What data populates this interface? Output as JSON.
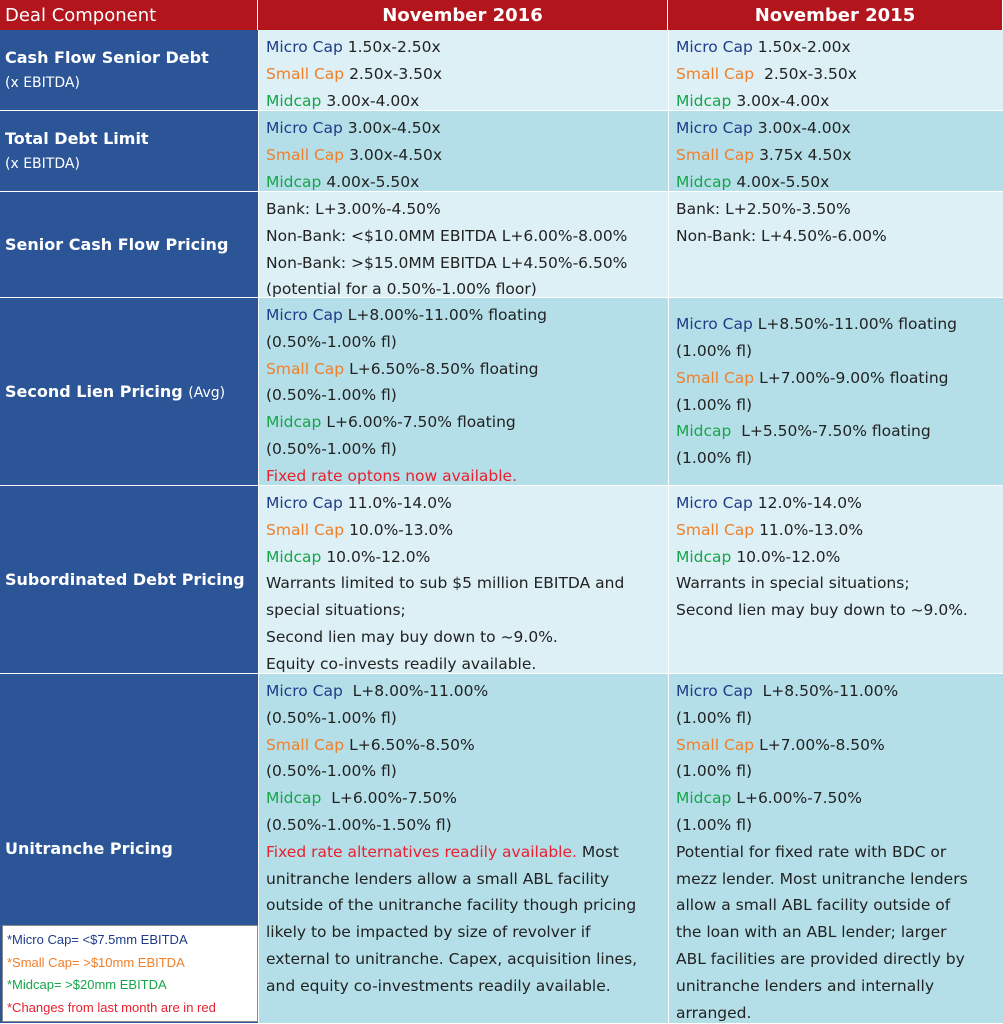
{
  "table": {
    "header": [
      "Deal Component",
      "November 2016",
      "November 2015"
    ],
    "rows": [
      {
        "label": "Cash Flow Senior Debt",
        "sublabel": "(x EBITDA)",
        "cells": [
          [
            [
              {
                "text": "Micro Cap",
                "color": "#1f3c88"
              },
              {
                "text": " 1.50x-2.50x"
              }
            ],
            [
              {
                "text": "Small Cap",
                "color": "#f07f2a"
              },
              {
                "text": " 2.50x-3.50x"
              }
            ],
            [
              {
                "text": "Midcap",
                "color": "#17a54a"
              },
              {
                "text": " 3.00x-4.00x"
              }
            ]
          ],
          [
            [
              {
                "text": "Micro Cap",
                "color": "#1f3c88"
              },
              {
                "text": " 1.50x-2.00x"
              }
            ],
            [
              {
                "text": "Small Cap",
                "color": "#f07f2a"
              },
              {
                "text": "  2.50x-3.50x"
              }
            ],
            [
              {
                "text": "Midcap",
                "color": "#17a54a"
              },
              {
                "text": " 3.00x-4.00x"
              }
            ]
          ]
        ]
      },
      {
        "label": "Total Debt Limit",
        "sublabel": "(x EBITDA)",
        "cells": [
          [
            [
              {
                "text": "Micro Cap",
                "color": "#1f3c88"
              },
              {
                "text": " 3.00x-4.50x"
              }
            ],
            [
              {
                "text": "Small Cap",
                "color": "#f07f2a"
              },
              {
                "text": " 3.00x-4.50x"
              }
            ],
            [
              {
                "text": "Midcap",
                "color": "#17a54a"
              },
              {
                "text": " 4.00x-5.50x"
              }
            ]
          ],
          [
            [
              {
                "text": "Micro Cap",
                "color": "#1f3c88"
              },
              {
                "text": " 3.00x-4.00x"
              }
            ],
            [
              {
                "text": "Small Cap",
                "color": "#f07f2a"
              },
              {
                "text": " 3.75x 4.50x"
              }
            ],
            [
              {
                "text": "Midcap",
                "color": "#17a54a"
              },
              {
                "text": " 4.00x-5.50x"
              }
            ]
          ]
        ]
      },
      {
        "label": "Senior Cash Flow Pricing",
        "cells": [
          [
            [
              {
                "text": "Bank: L+3.00%-4.50%"
              }
            ],
            [
              {
                "text": "Non-Bank: <$10.0MM EBITDA L+6.00%-8.00%"
              }
            ],
            [
              {
                "text": "Non-Bank: >$15.0MM EBITDA L+4.50%-6.50%"
              }
            ],
            [
              {
                "text": "(potential for a 0.50%-1.00% floor)"
              }
            ]
          ],
          [
            [
              {
                "text": "Bank: L+2.50%-3.50%"
              }
            ],
            [
              {
                "text": "Non-Bank: L+4.50%-6.00%"
              }
            ]
          ]
        ]
      },
      {
        "label": "Second Lien Pricing",
        "label_note": "(Avg)",
        "cells": [
          [
            [
              {
                "text": "Micro Cap",
                "color": "#1f3c88"
              },
              {
                "text": " L+8.00%-11.00% floating"
              }
            ],
            [
              {
                "text": "(0.50%-1.00% fl)"
              }
            ],
            [
              {
                "text": "Small Cap",
                "color": "#f07f2a"
              },
              {
                "text": " L+6.50%-8.50% floating"
              }
            ],
            [
              {
                "text": "(0.50%-1.00% fl)"
              }
            ],
            [
              {
                "text": "Midcap",
                "color": "#17a54a"
              },
              {
                "text": " L+6.00%-7.50% floating"
              }
            ],
            [
              {
                "text": "(0.50%-1.00% fl)"
              }
            ],
            [
              {
                "text": "Fixed rate optons now available.",
                "color": "#e8202f"
              }
            ]
          ],
          [
            [
              {
                "text": "Micro Cap",
                "color": "#1f3c88"
              },
              {
                "text": " L+8.50%-11.00% floating"
              }
            ],
            [
              {
                "text": "(1.00% fl)"
              }
            ],
            [
              {
                "text": "Small Cap",
                "color": "#f07f2a"
              },
              {
                "text": " L+7.00%-9.00% floating"
              }
            ],
            [
              {
                "text": "(1.00% fl)"
              }
            ],
            [
              {
                "text": "Midcap",
                "color": "#17a54a"
              },
              {
                "text": "  L+5.50%-7.50% floating"
              }
            ],
            [
              {
                "text": "(1.00% fl)"
              }
            ]
          ]
        ]
      },
      {
        "label": "Subordinated Debt Pricing",
        "cells": [
          [
            [
              {
                "text": "Micro Cap",
                "color": "#1f3c88"
              },
              {
                "text": " 11.0%-14.0%"
              }
            ],
            [
              {
                "text": "Small Cap",
                "color": "#f07f2a"
              },
              {
                "text": " 10.0%-13.0%"
              }
            ],
            [
              {
                "text": "Midcap",
                "color": "#17a54a"
              },
              {
                "text": " 10.0%-12.0%"
              }
            ],
            [
              {
                "text": "Warrants limited to sub $5 million EBITDA and"
              }
            ],
            [
              {
                "text": "special situations;"
              }
            ],
            [
              {
                "text": "Second lien may buy down to ~9.0%."
              }
            ],
            [
              {
                "text": "Equity co-invests readily available."
              }
            ]
          ],
          [
            [
              {
                "text": "Micro Cap",
                "color": "#1f3c88"
              },
              {
                "text": " 12.0%-14.0%"
              }
            ],
            [
              {
                "text": "Small Cap",
                "color": "#f07f2a"
              },
              {
                "text": " 11.0%-13.0%"
              }
            ],
            [
              {
                "text": "Midcap",
                "color": "#17a54a"
              },
              {
                "text": " 10.0%-12.0%"
              }
            ],
            [
              {
                "text": "Warrants in special situations;"
              }
            ],
            [
              {
                "text": "Second lien may buy down to ~9.0%."
              }
            ]
          ]
        ]
      },
      {
        "label": "Unitranche Pricing",
        "cells": [
          [
            [
              {
                "text": "Micro Cap",
                "color": "#1f3c88"
              },
              {
                "text": "  L+8.00%-11.00%"
              }
            ],
            [
              {
                "text": "(0.50%-1.00% fl)"
              }
            ],
            [
              {
                "text": "Small Cap",
                "color": "#f07f2a"
              },
              {
                "text": " L+6.50%-8.50%"
              }
            ],
            [
              {
                "text": "(0.50%-1.00% fl)"
              }
            ],
            [
              {
                "text": "Midcap",
                "color": "#17a54a"
              },
              {
                "text": "  L+6.00%-7.50%"
              }
            ],
            [
              {
                "text": "(0.50%-1.00%-1.50% fl)"
              }
            ],
            [
              {
                "text": "Fixed rate alternatives readily available.",
                "color": "#e8202f"
              },
              {
                "text": " Most"
              }
            ],
            [
              {
                "text": "unitranche lenders allow a small ABL facility"
              }
            ],
            [
              {
                "text": "outside of the unitranche facility though pricing"
              }
            ],
            [
              {
                "text": "likely to be impacted by size of revolver if"
              }
            ],
            [
              {
                "text": "external to unitranche. Capex, acquisition lines,"
              }
            ],
            [
              {
                "text": "and equity co-investments readily available."
              }
            ]
          ],
          [
            [
              {
                "text": "Micro Cap",
                "color": "#1f3c88"
              },
              {
                "text": "  L+8.50%-11.00%"
              }
            ],
            [
              {
                "text": "(1.00% fl)"
              }
            ],
            [
              {
                "text": "Small Cap",
                "color": "#f07f2a"
              },
              {
                "text": " L+7.00%-8.50%"
              }
            ],
            [
              {
                "text": "(1.00% fl)"
              }
            ],
            [
              {
                "text": "Midcap",
                "color": "#17a54a"
              },
              {
                "text": " L+6.00%-7.50%"
              }
            ],
            [
              {
                "text": "(1.00% fl)"
              }
            ],
            [
              {
                "text": "Potential for fixed rate with BDC or"
              }
            ],
            [
              {
                "text": "mezz lender. Most unitranche lenders"
              }
            ],
            [
              {
                "text": "allow a small ABL facility outside of"
              }
            ],
            [
              {
                "text": "the loan with an ABL lender; larger"
              }
            ],
            [
              {
                "text": "ABL facilities are provided directly by"
              }
            ],
            [
              {
                "text": "unitranche lenders and internally"
              }
            ],
            [
              {
                "text": "arranged."
              }
            ]
          ]
        ]
      }
    ]
  },
  "legend": [
    {
      "text": "*Micro Cap= <$7.5mm EBITDA",
      "color": "#1f3c88"
    },
    {
      "text": "*Small Cap= >$10mm EBITDA",
      "color": "#f07f2a"
    },
    {
      "text": "*Midcap= >$20mm EBITDA",
      "color": "#17a54a"
    },
    {
      "text": "*Changes from last month are in red",
      "color": "#e8202f"
    }
  ]
}
